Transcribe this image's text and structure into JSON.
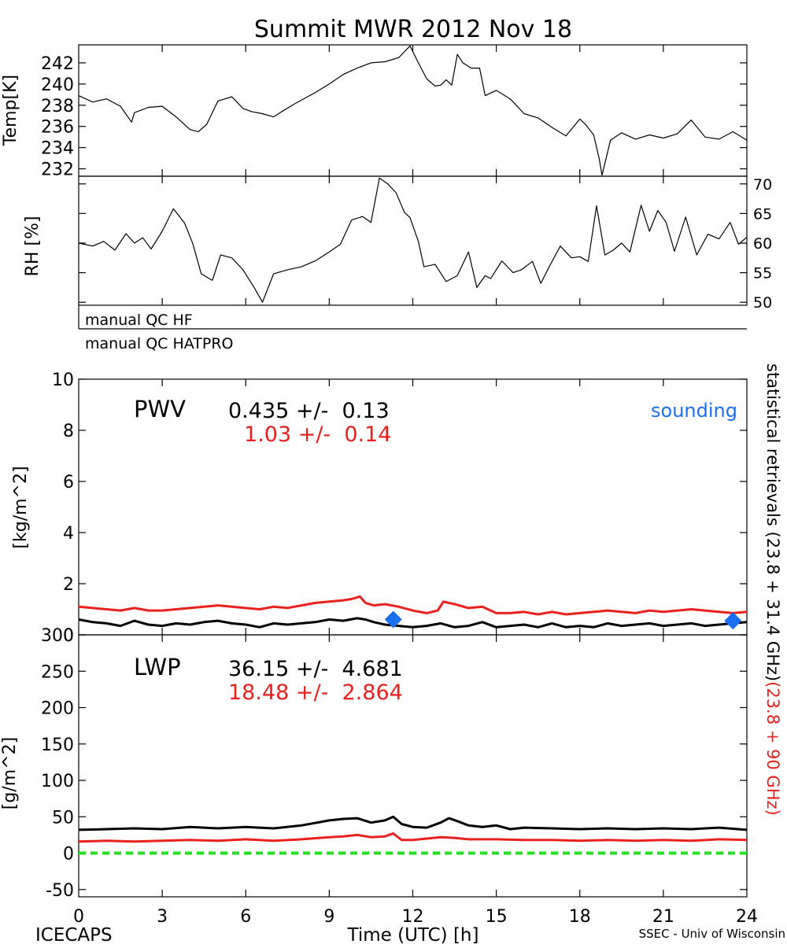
{
  "title": "Summit MWR 2012 Nov 18",
  "footer": {
    "left": "ICECAPS",
    "center": "Time (UTC) [h]",
    "right": "SSEC - Univ of Wisconsin"
  },
  "colors": {
    "black": "#000000",
    "red": "#e8201e",
    "blue": "#1a6ef0",
    "green": "#22e022"
  },
  "qc": {
    "hf": "manual QC HF",
    "hatpro": "manual QC HATPRO"
  },
  "side_labels": {
    "black_part": "statistical retrievals (23.8 + 31.4 GHz)",
    "red_part": "(23.8 + 90 GHz)"
  },
  "stats": {
    "pwv_label": "PWV",
    "pwv_black": "0.435 +/-  0.13",
    "pwv_red": "1.03 +/-  0.14",
    "lwp_label": "LWP",
    "lwp_black": "36.15 +/-  4.681",
    "lwp_red": "18.48 +/-  2.864",
    "sounding": "sounding"
  },
  "chart_data": [
    {
      "type": "line",
      "panel": "temperature",
      "ylabel": "Temp[K]",
      "y_ticks": [
        232,
        234,
        236,
        238,
        240,
        242
      ],
      "ylim": [
        231.3,
        243.7
      ],
      "xlim": [
        0,
        24
      ],
      "series": [
        {
          "color": "black",
          "x": [
            0,
            0.5,
            1,
            1.5,
            1.9,
            2,
            2.5,
            3,
            3.5,
            4,
            4.3,
            4.6,
            5,
            5.5,
            5.9,
            6.2,
            6.6,
            7,
            7.3,
            7.8,
            8.5,
            9.0,
            9.5,
            10.0,
            10.5,
            11.0,
            11.5,
            11.9,
            12.2,
            12.5,
            12.8,
            13.0,
            13.2,
            13.4,
            13.6,
            13.8,
            14.1,
            14.4,
            14.6,
            15.0,
            15.5,
            16.0,
            16.5,
            17.0,
            17.5,
            18.0,
            18.2,
            18.5,
            18.7,
            18.8,
            19.1,
            19.5,
            20.0,
            20.5,
            21.0,
            21.5,
            22.0,
            22.5,
            23.0,
            23.5,
            24
          ],
          "y": [
            238.9,
            238.3,
            238.6,
            237.9,
            236.4,
            237.3,
            237.8,
            237.9,
            236.9,
            235.7,
            235.5,
            236.2,
            238.4,
            238.8,
            237.7,
            237.4,
            237.2,
            236.9,
            237.4,
            238.2,
            239.2,
            240.0,
            240.9,
            241.5,
            242.0,
            242.1,
            242.5,
            243.6,
            242.0,
            240.5,
            239.8,
            239.9,
            240.4,
            239.9,
            242.8,
            242.0,
            241.5,
            241.5,
            238.9,
            239.4,
            238.6,
            237.2,
            236.8,
            235.9,
            235.1,
            236.7,
            236.2,
            235.2,
            232.9,
            231.4,
            234.7,
            235.4,
            234.8,
            235.2,
            234.9,
            235.3,
            236.6,
            235.0,
            234.8,
            235.5,
            234.7
          ]
        }
      ]
    },
    {
      "type": "line",
      "panel": "relative-humidity",
      "ylabel": "RH [%]",
      "y_ticks": [
        50,
        55,
        60,
        65,
        70
      ],
      "ylim": [
        49.5,
        71.3
      ],
      "xlim": [
        0,
        24
      ],
      "series": [
        {
          "color": "black",
          "x": [
            0,
            0.5,
            0.9,
            1.3,
            1.7,
            2.0,
            2.3,
            2.6,
            3.0,
            3.4,
            3.8,
            4.1,
            4.4,
            4.8,
            5.1,
            5.5,
            5.9,
            6.3,
            6.6,
            7.0,
            7.5,
            8.0,
            8.5,
            9.0,
            9.4,
            9.8,
            10.2,
            10.5,
            10.8,
            11.1,
            11.4,
            11.7,
            11.9,
            12.2,
            12.4,
            12.8,
            13.2,
            13.6,
            14.0,
            14.3,
            14.6,
            14.8,
            15.2,
            15.6,
            15.9,
            16.3,
            16.6,
            16.9,
            17.3,
            17.7,
            18.0,
            18.3,
            18.6,
            18.9,
            19.2,
            19.5,
            19.8,
            20.2,
            20.5,
            20.8,
            21.1,
            21.4,
            21.8,
            22.2,
            22.6,
            23.0,
            23.4,
            23.7,
            24
          ],
          "y": [
            60.0,
            59.5,
            60.3,
            58.8,
            61.6,
            60.0,
            60.9,
            59.0,
            62.0,
            65.8,
            63.4,
            59.9,
            54.8,
            53.7,
            58.0,
            57.5,
            55.5,
            52.5,
            50.0,
            54.8,
            55.5,
            56.0,
            57.0,
            58.5,
            59.8,
            63.9,
            64.5,
            63.5,
            71.0,
            70.0,
            68.5,
            65.2,
            64.3,
            60.3,
            56.0,
            56.4,
            53.5,
            54.5,
            58.5,
            52.5,
            54.5,
            54.0,
            57.0,
            55.0,
            55.5,
            56.9,
            53.2,
            56.0,
            59.5,
            57.5,
            57.7,
            56.9,
            66.3,
            58.0,
            58.8,
            60.0,
            58.5,
            66.4,
            62.0,
            65.5,
            63.5,
            58.6,
            64.4,
            58.0,
            61.5,
            60.7,
            63.5,
            59.8,
            61.0
          ]
        }
      ]
    },
    {
      "type": "line",
      "panel": "pwv",
      "ylabel": "[kg/m^2]",
      "y_ticks": [
        0,
        2,
        4,
        6,
        8,
        10
      ],
      "ylim": [
        0,
        10
      ],
      "xlim": [
        0,
        24
      ],
      "series": [
        {
          "color": "black",
          "x": [
            0,
            0.5,
            1,
            1.5,
            2,
            2.5,
            3,
            3.5,
            4,
            4.5,
            5,
            5.5,
            6,
            6.5,
            7,
            7.5,
            8,
            8.5,
            9,
            9.5,
            10,
            10.3,
            10.6,
            11,
            11.5,
            12,
            12.5,
            13,
            13.5,
            14,
            14.5,
            15,
            15.5,
            16,
            16.5,
            17,
            17.5,
            18,
            18.5,
            19,
            19.5,
            20,
            20.5,
            21,
            21.5,
            22,
            22.5,
            23,
            23.5,
            24
          ],
          "y": [
            0.6,
            0.5,
            0.45,
            0.35,
            0.55,
            0.4,
            0.35,
            0.45,
            0.4,
            0.5,
            0.55,
            0.45,
            0.4,
            0.3,
            0.45,
            0.4,
            0.45,
            0.5,
            0.6,
            0.55,
            0.65,
            0.6,
            0.5,
            0.4,
            0.35,
            0.3,
            0.35,
            0.45,
            0.3,
            0.35,
            0.5,
            0.3,
            0.35,
            0.4,
            0.3,
            0.45,
            0.3,
            0.35,
            0.3,
            0.45,
            0.35,
            0.4,
            0.45,
            0.35,
            0.4,
            0.45,
            0.35,
            0.4,
            0.45,
            0.5
          ]
        },
        {
          "color": "red",
          "x": [
            0,
            0.5,
            1,
            1.5,
            2,
            2.5,
            3,
            3.5,
            4,
            4.5,
            5,
            5.5,
            6,
            6.5,
            7,
            7.5,
            8,
            8.5,
            9,
            9.5,
            9.8,
            10.1,
            10.3,
            10.6,
            11,
            11.5,
            12,
            12.5,
            12.9,
            13.1,
            13.5,
            14,
            14.5,
            15,
            15.5,
            16,
            16.5,
            17,
            17.5,
            18,
            18.5,
            19,
            19.5,
            20,
            20.5,
            21,
            21.5,
            22,
            22.5,
            23,
            23.5,
            24
          ],
          "y": [
            1.1,
            1.05,
            1.0,
            0.95,
            1.05,
            0.95,
            0.95,
            1.0,
            1.05,
            1.1,
            1.15,
            1.1,
            1.05,
            1.0,
            1.1,
            1.05,
            1.15,
            1.25,
            1.3,
            1.35,
            1.4,
            1.5,
            1.25,
            1.15,
            1.2,
            1.1,
            0.95,
            0.85,
            0.95,
            1.3,
            1.2,
            1.05,
            1.1,
            0.85,
            0.85,
            0.9,
            0.8,
            0.9,
            0.8,
            0.85,
            0.9,
            0.95,
            0.9,
            0.85,
            0.95,
            0.9,
            0.95,
            1.0,
            0.95,
            0.9,
            0.85,
            0.9
          ]
        },
        {
          "color": "blue",
          "kind": "markers",
          "name": "sounding",
          "x": [
            11.3,
            23.5
          ],
          "y": [
            0.6,
            0.55
          ]
        }
      ]
    },
    {
      "type": "line",
      "panel": "lwp",
      "ylabel": "[g/m^2]",
      "y_ticks": [
        -50,
        0,
        50,
        100,
        150,
        200,
        250,
        300
      ],
      "ylim": [
        -60,
        300
      ],
      "xlim": [
        0,
        24
      ],
      "x_ticks": [
        0,
        3,
        6,
        9,
        12,
        15,
        18,
        21,
        24
      ],
      "series": [
        {
          "color": "black",
          "x": [
            0,
            1,
            2,
            3,
            4,
            5,
            6,
            7,
            8,
            9,
            9.5,
            10,
            10.5,
            11,
            11.3,
            11.6,
            12,
            12.5,
            13,
            13.3,
            13.6,
            14,
            14.5,
            15,
            15.5,
            16,
            17,
            18,
            19,
            20,
            21,
            22,
            23,
            24
          ],
          "y": [
            32,
            33,
            34,
            33,
            36,
            34,
            36,
            34,
            38,
            45,
            47,
            48,
            42,
            45,
            50,
            40,
            36,
            35,
            42,
            48,
            44,
            38,
            36,
            38,
            33,
            35,
            34,
            33,
            34,
            33,
            34,
            33,
            35,
            32
          ]
        },
        {
          "color": "red",
          "x": [
            0,
            1,
            2,
            3,
            4,
            5,
            6,
            7,
            8,
            9,
            9.5,
            10,
            10.5,
            11,
            11.3,
            11.6,
            12,
            12.5,
            13,
            13.5,
            14,
            15,
            16,
            17,
            18,
            19,
            20,
            21,
            22,
            23,
            24
          ],
          "y": [
            16,
            17,
            16,
            17,
            18,
            17,
            19,
            17,
            19,
            22,
            23,
            25,
            22,
            23,
            27,
            18,
            18,
            20,
            22,
            21,
            19,
            19,
            18,
            18,
            17,
            18,
            17,
            18,
            17,
            19,
            18
          ]
        },
        {
          "color": "green",
          "kind": "dashed-reference",
          "x": [
            0,
            24
          ],
          "y": [
            0,
            0
          ]
        }
      ]
    }
  ]
}
